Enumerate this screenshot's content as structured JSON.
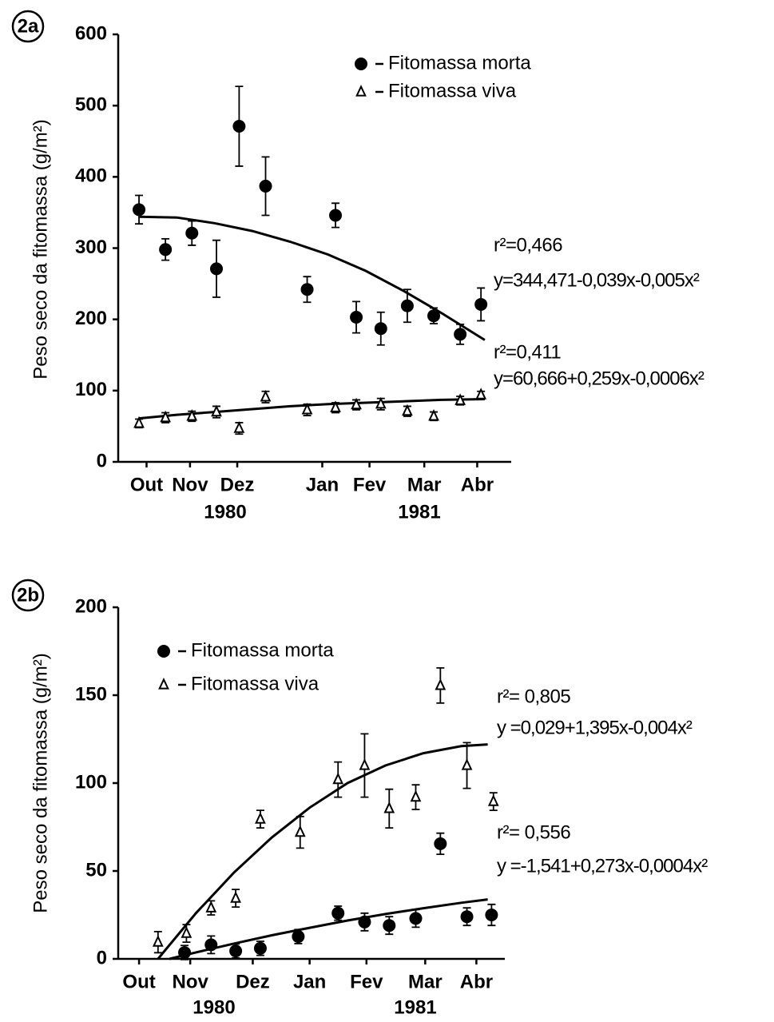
{
  "chart_data": [
    {
      "type": "scatter",
      "panel_label": "2a",
      "y_label": "Peso seco da fitomassa (g/m²)",
      "xlim": [
        -11,
        197
      ],
      "ylim": [
        0,
        600
      ],
      "yticks": [
        0,
        100,
        200,
        300,
        400,
        500,
        600
      ],
      "xticks": [
        {
          "value": 4,
          "label": "Out"
        },
        {
          "value": 27,
          "label": "Nov"
        },
        {
          "value": 52,
          "label": "Dez"
        },
        {
          "value": 97,
          "label": "Jan"
        },
        {
          "value": 122,
          "label": "Fev"
        },
        {
          "value": 151,
          "label": "Mar"
        },
        {
          "value": 179,
          "label": "Abr"
        }
      ],
      "year_labels": [
        "1980",
        "1981"
      ],
      "series": [
        {
          "name": "Fitomassa morta",
          "color": "#000000",
          "marker": "filled-circle",
          "x": [
            0,
            14,
            28,
            41,
            53,
            67,
            89,
            104,
            115,
            128,
            142,
            156,
            170,
            181
          ],
          "values": [
            354,
            298,
            321,
            271,
            471,
            387,
            242,
            346,
            203,
            187,
            219,
            205,
            179,
            221
          ],
          "errors": [
            20,
            15,
            17,
            40,
            56,
            41,
            18,
            17,
            22,
            23,
            23,
            11,
            14,
            23
          ],
          "curve": {
            "x": [
              0,
              20,
              40,
              60,
              80,
              100,
              120,
              140,
              160,
              183
            ],
            "values": [
              344,
              343,
              335,
              324,
              309,
              291,
              268,
              240,
              209,
              171
            ]
          },
          "fit": {
            "r2": "r²=0,466",
            "equation": "y=344,471-0,039x-0,005x²"
          }
        },
        {
          "name": "Fitomassa viva",
          "color": "#000000",
          "marker": "open-triangle",
          "x": [
            0,
            14,
            28,
            41,
            53,
            67,
            89,
            104,
            115,
            128,
            142,
            156,
            170,
            181
          ],
          "values": [
            54,
            62,
            64,
            70,
            47,
            91,
            73,
            76,
            80,
            81,
            71,
            64,
            86,
            94
          ],
          "errors": [
            6,
            7,
            7,
            8,
            8,
            8,
            8,
            7,
            7,
            8,
            7,
            6,
            6,
            5
          ],
          "curve": {
            "x": [
              0,
              20,
              40,
              60,
              80,
              100,
              120,
              140,
              160,
              183
            ],
            "values": [
              61,
              66,
              70,
              74,
              78,
              81,
              83,
              85,
              87,
              88
            ]
          },
          "fit": {
            "r2": "r²=0,411",
            "equation": "y=60,666+0,259x-0,0006x²"
          }
        }
      ]
    },
    {
      "type": "scatter",
      "panel_label": "2b",
      "y_label": "Peso seco da fitomassa (g/m²)",
      "xlim": [
        -21,
        183
      ],
      "ylim": [
        0,
        200
      ],
      "yticks": [
        0,
        50,
        100,
        150,
        200
      ],
      "xticks": [
        {
          "value": -10,
          "label": "Out"
        },
        {
          "value": 17,
          "label": "Nov"
        },
        {
          "value": 50,
          "label": "Dez"
        },
        {
          "value": 80,
          "label": "Jan"
        },
        {
          "value": 110,
          "label": "Fev"
        },
        {
          "value": 141,
          "label": "Mar"
        },
        {
          "value": 168,
          "label": "Abr"
        }
      ],
      "year_labels": [
        "1980",
        "1981"
      ],
      "series": [
        {
          "name": "Fitomassa morta",
          "color": "#000000",
          "marker": "filled-circle",
          "x": [
            14,
            28,
            41,
            54,
            74,
            95,
            109,
            122,
            136,
            149,
            163,
            176
          ],
          "values": [
            3.6,
            8,
            4.5,
            6,
            12.7,
            26,
            21,
            19,
            23,
            65.5,
            24,
            25
          ],
          "errors": [
            4,
            5,
            4,
            4,
            4,
            4,
            5,
            5,
            5,
            6,
            5,
            6
          ],
          "curve": {
            "x": [
              6,
              20,
              40,
              60,
              80,
              100,
              120,
              140,
              160,
              174
            ],
            "values": [
              0,
              3.7,
              8.7,
              13.4,
              17.7,
              21.8,
              25.5,
              28.8,
              31.9,
              33.8
            ]
          },
          "fit": {
            "r2": "r²= 0,556",
            "equation": "y =-1,541+0,273x-0,0004x²"
          }
        },
        {
          "name": "Fitomassa viva",
          "color": "#000000",
          "marker": "open-triangle",
          "x": [
            0,
            15,
            28,
            41,
            54,
            75,
            95,
            109,
            122,
            136,
            149,
            163,
            177
          ],
          "values": [
            9.5,
            14.5,
            29,
            34.5,
            79.5,
            72,
            102,
            110,
            85.5,
            92,
            155.5,
            110,
            89.5
          ],
          "errors": [
            6,
            5,
            4,
            5,
            5,
            9,
            10,
            18,
            11,
            7,
            10,
            13,
            5
          ],
          "curve": {
            "x": [
              0,
              20,
              40,
              60,
              80,
              100,
              120,
              140,
              160,
              174
            ],
            "values": [
              0,
              26,
              49,
              69,
              86,
              100,
              110,
              117,
              121,
              122
            ]
          },
          "fit": {
            "r2": "r²= 0,805",
            "equation": "y =0,029+1,395x-0,004x²"
          }
        }
      ]
    }
  ]
}
